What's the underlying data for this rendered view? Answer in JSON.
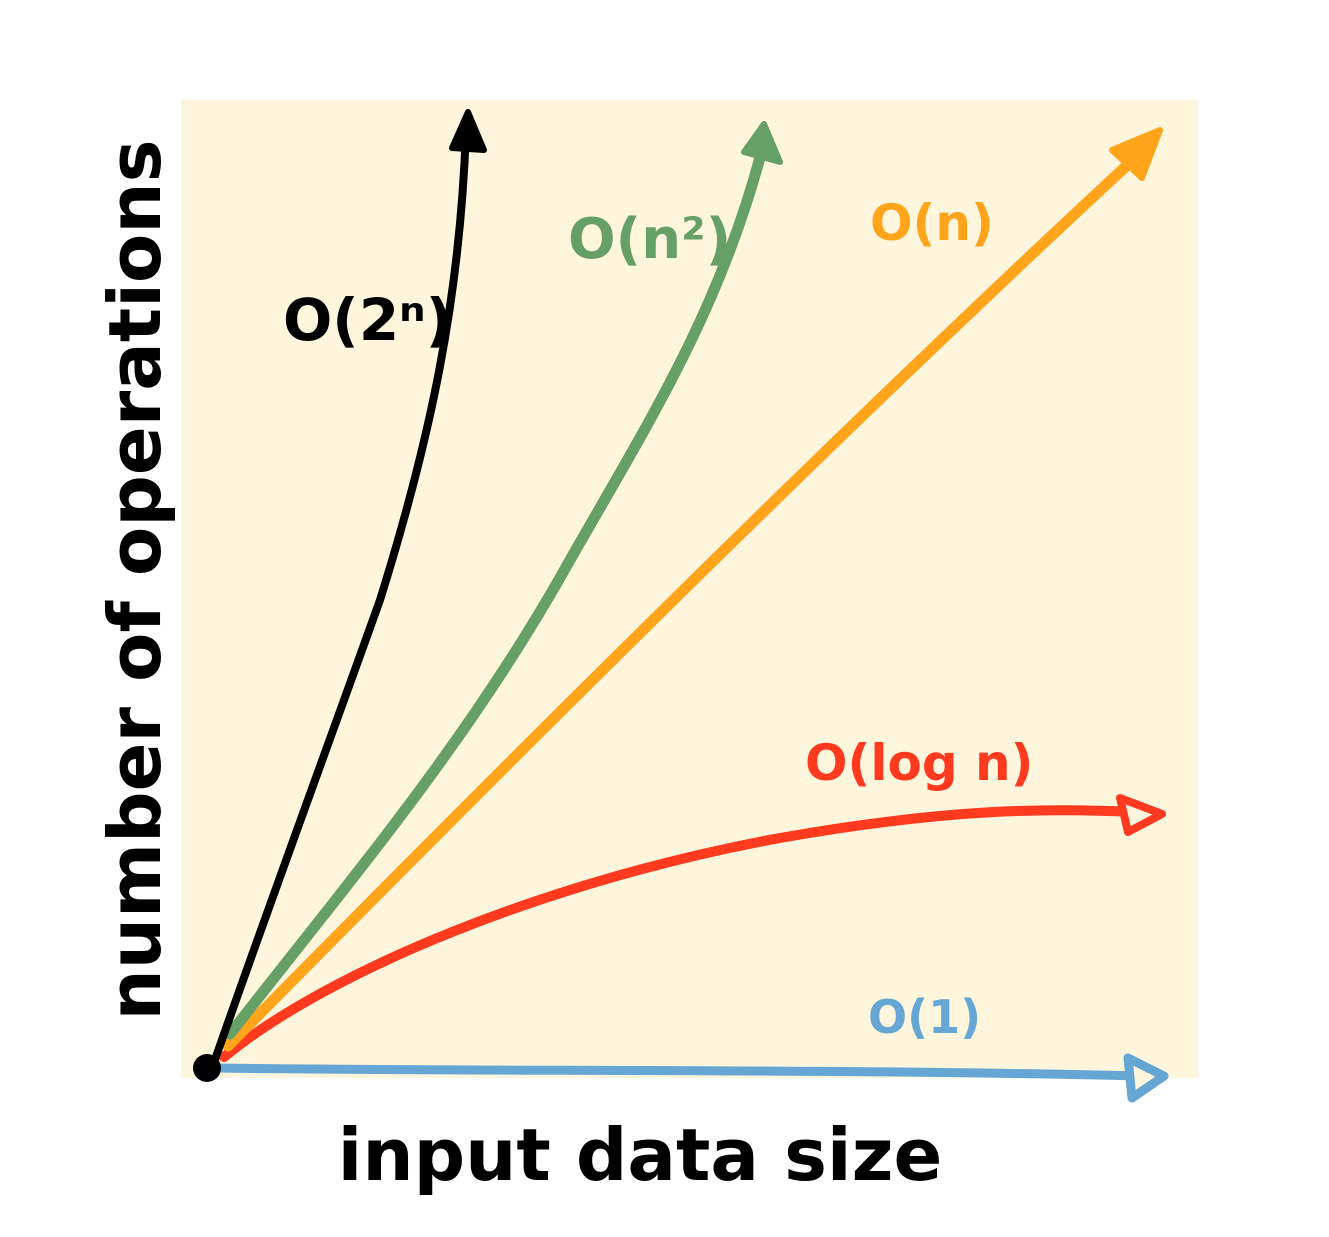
{
  "axes": {
    "x_label": "input data size",
    "y_label": "number of operations"
  },
  "colors": {
    "panel": "#fdf5dc",
    "o_1": "#65a6d4",
    "o_log_n": "#ff3a1f",
    "o_n": "#ffa41b",
    "o_n2": "#66a066",
    "o_2n": "#000000"
  },
  "curves": [
    {
      "id": "o_1",
      "label": "O(1)",
      "color": "#65a6d4",
      "arrow": "open-triangle"
    },
    {
      "id": "o_log_n",
      "label": "O(log n)",
      "color": "#ff3a1f",
      "arrow": "open-triangle"
    },
    {
      "id": "o_n",
      "label": "O(n)",
      "color": "#ffa41b",
      "arrow": "filled-triangle"
    },
    {
      "id": "o_n2",
      "label": "O(n²)",
      "color": "#66a066",
      "arrow": "filled-triangle"
    },
    {
      "id": "o_2n",
      "label": "O(2ⁿ)",
      "color": "#000000",
      "arrow": "filled-triangle"
    }
  ]
}
